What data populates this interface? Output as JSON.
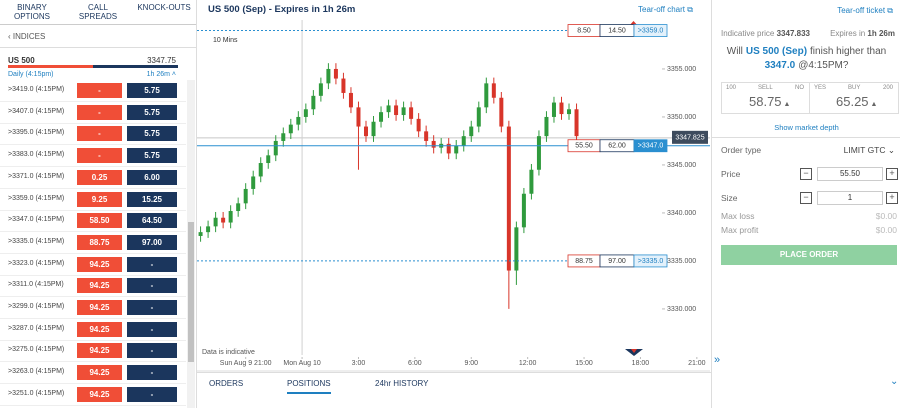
{
  "left_panel": {
    "tabs": [
      "BINARY OPTIONS",
      "CALL SPREADS",
      "KNOCK-OUTS"
    ],
    "breadcrumb": "INDICES",
    "market": {
      "name": "US 500",
      "price": "3347.75",
      "period": "Daily (4:15pm)",
      "expires": "1h 26m"
    },
    "rows": [
      {
        "label": ">3419.0 (4:15PM)",
        "sell": "-",
        "buy": "5.75"
      },
      {
        "label": ">3407.0 (4:15PM)",
        "sell": "-",
        "buy": "5.75"
      },
      {
        "label": ">3395.0 (4:15PM)",
        "sell": "-",
        "buy": "5.75"
      },
      {
        "label": ">3383.0 (4:15PM)",
        "sell": "-",
        "buy": "5.75"
      },
      {
        "label": ">3371.0 (4:15PM)",
        "sell": "0.25",
        "buy": "6.00"
      },
      {
        "label": ">3359.0 (4:15PM)",
        "sell": "9.25",
        "buy": "15.25"
      },
      {
        "label": ">3347.0 (4:15PM)",
        "sell": "58.50",
        "buy": "64.50"
      },
      {
        "label": ">3335.0 (4:15PM)",
        "sell": "88.75",
        "buy": "97.00"
      },
      {
        "label": ">3323.0 (4:15PM)",
        "sell": "94.25",
        "buy": "-"
      },
      {
        "label": ">3311.0 (4:15PM)",
        "sell": "94.25",
        "buy": "-"
      },
      {
        "label": ">3299.0 (4:15PM)",
        "sell": "94.25",
        "buy": "-"
      },
      {
        "label": ">3287.0 (4:15PM)",
        "sell": "94.25",
        "buy": "-"
      },
      {
        "label": ">3275.0 (4:15PM)",
        "sell": "94.25",
        "buy": "-"
      },
      {
        "label": ">3263.0 (4:15PM)",
        "sell": "94.25",
        "buy": "-"
      },
      {
        "label": ">3251.0 (4:15PM)",
        "sell": "94.25",
        "buy": "-"
      }
    ]
  },
  "chart": {
    "type": "candlestick",
    "title": "US 500 (Sep) - Expires in 1h 26m",
    "tear_off": "Tear-off chart",
    "interval": "10 Mins",
    "note": "Data is indicative",
    "ylim": [
      3325.2,
      3360.1
    ],
    "yticks": [
      {
        "value": 3355,
        "label": "3355.000"
      },
      {
        "value": 3350,
        "label": "3350.000"
      },
      {
        "value": 3345,
        "label": "3345.000"
      },
      {
        "value": 3340,
        "label": "3340.000"
      },
      {
        "value": 3335,
        "label": "3335.000"
      },
      {
        "value": 3330,
        "label": "3330.000"
      }
    ],
    "xlim": [
      -5.59,
      21.7
    ],
    "xticks": [
      {
        "value": -3,
        "label": "Sun Aug 9 21:00"
      },
      {
        "value": 0,
        "label": "Mon Aug 10"
      },
      {
        "value": 3,
        "label": "3:00"
      },
      {
        "value": 6,
        "label": "6:00"
      },
      {
        "value": 9,
        "label": "9:00"
      },
      {
        "value": 12,
        "label": "12:00"
      },
      {
        "value": 15,
        "label": "15:00"
      },
      {
        "value": 18,
        "label": "18:00"
      },
      {
        "value": 21,
        "label": "21:00"
      }
    ],
    "up_color": "#2f9a3d",
    "down_color": "#d8352a",
    "candles": [
      [
        -5.4,
        3337.6,
        3338.6,
        3337.0,
        3338.0
      ],
      [
        -5.0,
        3338.0,
        3339.2,
        3337.4,
        3338.6
      ],
      [
        -4.6,
        3338.6,
        3340.1,
        3338.0,
        3339.5
      ],
      [
        -4.2,
        3339.5,
        3340.1,
        3338.4,
        3339.0
      ],
      [
        -3.8,
        3339.0,
        3340.8,
        3338.4,
        3340.2
      ],
      [
        -3.4,
        3340.2,
        3341.6,
        3339.6,
        3341.0
      ],
      [
        -3.0,
        3341.0,
        3343.1,
        3340.4,
        3342.5
      ],
      [
        -2.6,
        3342.5,
        3344.4,
        3341.9,
        3343.8
      ],
      [
        -2.2,
        3343.8,
        3345.8,
        3343.2,
        3345.2
      ],
      [
        -1.8,
        3345.2,
        3346.6,
        3344.6,
        3346.0
      ],
      [
        -1.4,
        3346.0,
        3348.1,
        3345.4,
        3347.5
      ],
      [
        -1.0,
        3347.5,
        3348.9,
        3346.9,
        3348.3
      ],
      [
        -0.6,
        3348.3,
        3349.8,
        3347.7,
        3349.2
      ],
      [
        -0.2,
        3349.2,
        3350.6,
        3348.6,
        3350.0
      ],
      [
        0.2,
        3350.0,
        3351.4,
        3349.4,
        3350.8
      ],
      [
        0.6,
        3350.8,
        3352.8,
        3350.2,
        3352.2
      ],
      [
        1.0,
        3352.2,
        3354.1,
        3351.6,
        3353.5
      ],
      [
        1.4,
        3353.5,
        3355.6,
        3352.9,
        3355.0
      ],
      [
        1.8,
        3355.0,
        3355.6,
        3353.4,
        3354.0
      ],
      [
        2.2,
        3354.0,
        3354.6,
        3351.9,
        3352.5
      ],
      [
        2.6,
        3352.5,
        3353.1,
        3350.4,
        3351.0
      ],
      [
        3.0,
        3351.0,
        3351.6,
        3344.5,
        3349.0
      ],
      [
        3.4,
        3349.0,
        3349.6,
        3347.4,
        3348.0
      ],
      [
        3.8,
        3348.0,
        3350.1,
        3347.4,
        3349.5
      ],
      [
        4.2,
        3349.5,
        3351.1,
        3348.9,
        3350.5
      ],
      [
        4.6,
        3350.5,
        3351.8,
        3349.9,
        3351.2
      ],
      [
        5.0,
        3351.2,
        3351.8,
        3349.6,
        3350.2
      ],
      [
        5.4,
        3350.2,
        3351.6,
        3349.6,
        3351.0
      ],
      [
        5.8,
        3351.0,
        3351.6,
        3349.2,
        3349.8
      ],
      [
        6.2,
        3349.8,
        3350.4,
        3347.9,
        3348.5
      ],
      [
        6.6,
        3348.5,
        3349.1,
        3346.9,
        3347.5
      ],
      [
        7.0,
        3347.5,
        3348.1,
        3346.2,
        3346.8
      ],
      [
        7.4,
        3346.8,
        3347.8,
        3346.2,
        3347.2
      ],
      [
        7.8,
        3347.2,
        3347.8,
        3345.6,
        3346.2
      ],
      [
        8.2,
        3346.2,
        3347.6,
        3345.6,
        3347.0
      ],
      [
        8.6,
        3347.0,
        3348.6,
        3346.4,
        3348.0
      ],
      [
        9.0,
        3348.0,
        3349.6,
        3347.4,
        3349.0
      ],
      [
        9.4,
        3349.0,
        3351.6,
        3348.4,
        3351.0
      ],
      [
        9.8,
        3351.0,
        3354.1,
        3350.4,
        3353.5
      ],
      [
        10.2,
        3353.5,
        3354.1,
        3351.4,
        3352.0
      ],
      [
        10.6,
        3352.0,
        3352.6,
        3348.4,
        3349.0
      ],
      [
        11.0,
        3349.0,
        3349.6,
        3330.0,
        3334.0
      ],
      [
        11.4,
        3334.0,
        3339.1,
        3332.5,
        3338.5
      ],
      [
        11.8,
        3338.5,
        3342.6,
        3337.9,
        3342.0
      ],
      [
        12.2,
        3342.0,
        3345.1,
        3341.4,
        3344.5
      ],
      [
        12.6,
        3344.5,
        3348.6,
        3343.9,
        3348.0
      ],
      [
        13.0,
        3348.0,
        3350.6,
        3347.4,
        3350.0
      ],
      [
        13.4,
        3350.0,
        3352.1,
        3349.4,
        3351.5
      ],
      [
        13.8,
        3351.5,
        3352.1,
        3349.7,
        3350.3
      ],
      [
        14.2,
        3350.3,
        3351.4,
        3349.7,
        3350.8
      ],
      [
        14.6,
        3350.8,
        3351.4,
        3347.4,
        3348.0
      ]
    ],
    "current": {
      "value": 3347.825,
      "label": "3347.825"
    },
    "levels": [
      {
        "value": 3359,
        "sell": "8.50",
        "buy": "14.50",
        "label": ">3359.0",
        "style": "dotted"
      },
      {
        "value": 3347,
        "sell": "55.50",
        "buy": "62.00",
        "label": ">3347.0",
        "style": "solid"
      },
      {
        "value": 3335,
        "sell": "88.75",
        "buy": "97.00",
        "label": ">3335.0",
        "style": "dotted"
      }
    ]
  },
  "bottom_tabs": {
    "tabs": [
      "ORDERS",
      "POSITIONS",
      "24hr HISTORY"
    ],
    "active": 1
  },
  "ticket": {
    "tear_off": "Tear-off ticket",
    "indicative_label": "Indicative price",
    "indicative": "3347.833",
    "expires_label": "Expires in",
    "expires": "1h 26m",
    "question": [
      "Will",
      "US 500 (Sep)",
      "finish higher than",
      "3347.0",
      "@4:15PM?"
    ],
    "min": "100",
    "sell_label": "SELL",
    "no": "NO",
    "yes": "YES",
    "buy_label": "BUY",
    "max": "200",
    "sell": "58.75",
    "buy": "65.25",
    "depth": "Show market depth",
    "order_type_label": "Order type",
    "order_type": "LIMIT GTC",
    "price_label": "Price",
    "price": "55.50",
    "size_label": "Size",
    "size": "1",
    "max_loss_label": "Max loss",
    "max_loss": "$0.00",
    "max_profit_label": "Max profit",
    "max_profit": "$0.00",
    "button": "PLACE ORDER"
  }
}
